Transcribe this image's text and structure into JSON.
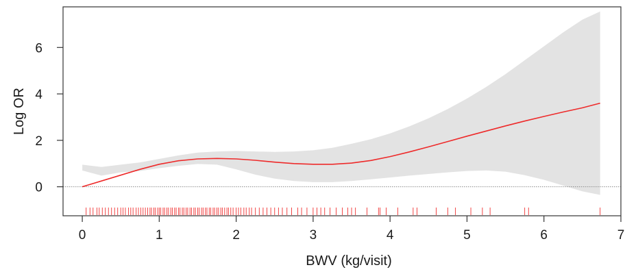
{
  "chart_data": {
    "type": "line",
    "title": "",
    "xlabel": "BWV (kg/visit)",
    "ylabel": "Log OR",
    "xlim": [
      -0.25,
      7
    ],
    "ylim": [
      -1.25,
      7.75
    ],
    "x_ticks": [
      "0",
      "1",
      "2",
      "3",
      "4",
      "5",
      "6",
      "7"
    ],
    "y_ticks": [
      "0",
      "2",
      "4",
      "6"
    ],
    "reference_line_y": 0,
    "grid": false,
    "colors": {
      "line": "#ee2a2a",
      "band": "#e3e3e3",
      "rug": "#f03030",
      "reference": "#8c8c8c",
      "axis": "#333333"
    },
    "series": [
      {
        "x": [
          0,
          0.25,
          0.5,
          0.75,
          1,
          1.25,
          1.5,
          1.75,
          2,
          2.25,
          2.5,
          2.75,
          3,
          3.25,
          3.5,
          3.75,
          4,
          4.25,
          4.5,
          4.75,
          5,
          5.25,
          5.5,
          5.75,
          6,
          6.25,
          6.5,
          6.73
        ],
        "y": [
          0,
          0.25,
          0.5,
          0.75,
          0.97,
          1.12,
          1.2,
          1.22,
          1.2,
          1.14,
          1.06,
          1.0,
          0.97,
          0.97,
          1.02,
          1.13,
          1.3,
          1.5,
          1.72,
          1.95,
          2.18,
          2.4,
          2.62,
          2.83,
          3.03,
          3.22,
          3.4,
          3.6
        ],
        "lower": [
          0.7,
          0.48,
          0.62,
          0.68,
          0.8,
          0.9,
          0.98,
          0.95,
          0.75,
          0.52,
          0.35,
          0.25,
          0.2,
          0.2,
          0.25,
          0.32,
          0.4,
          0.48,
          0.55,
          0.62,
          0.68,
          0.7,
          0.65,
          0.5,
          0.3,
          0.05,
          -0.2,
          -0.35
        ],
        "upper": [
          0.95,
          0.85,
          0.95,
          1.05,
          1.2,
          1.35,
          1.47,
          1.52,
          1.54,
          1.52,
          1.5,
          1.52,
          1.57,
          1.68,
          1.85,
          2.05,
          2.3,
          2.6,
          2.95,
          3.35,
          3.8,
          4.3,
          4.85,
          5.45,
          6.05,
          6.65,
          7.2,
          7.55
        ]
      }
    ],
    "rug": [
      0.05,
      0.1,
      0.14,
      0.19,
      0.22,
      0.26,
      0.3,
      0.34,
      0.38,
      0.42,
      0.46,
      0.5,
      0.53,
      0.56,
      0.6,
      0.63,
      0.66,
      0.7,
      0.73,
      0.76,
      0.79,
      0.82,
      0.85,
      0.88,
      0.9,
      0.93,
      0.95,
      0.98,
      1.0,
      1.02,
      1.05,
      1.07,
      1.1,
      1.12,
      1.15,
      1.17,
      1.2,
      1.22,
      1.25,
      1.27,
      1.3,
      1.32,
      1.35,
      1.37,
      1.4,
      1.42,
      1.45,
      1.47,
      1.5,
      1.52,
      1.55,
      1.57,
      1.6,
      1.62,
      1.65,
      1.67,
      1.7,
      1.72,
      1.75,
      1.77,
      1.8,
      1.82,
      1.85,
      1.88,
      1.9,
      1.93,
      1.96,
      2.0,
      2.03,
      2.06,
      2.1,
      2.13,
      2.17,
      2.2,
      2.25,
      2.3,
      2.35,
      2.4,
      2.45,
      2.5,
      2.55,
      2.6,
      2.66,
      2.72,
      2.8,
      2.85,
      2.92,
      3.0,
      3.05,
      3.1,
      3.15,
      3.22,
      3.3,
      3.38,
      3.45,
      3.5,
      3.55,
      3.7,
      3.85,
      3.87,
      3.95,
      4.1,
      4.3,
      4.35,
      4.6,
      4.75,
      4.85,
      5.05,
      5.2,
      5.3,
      5.75,
      5.8,
      6.73
    ]
  }
}
